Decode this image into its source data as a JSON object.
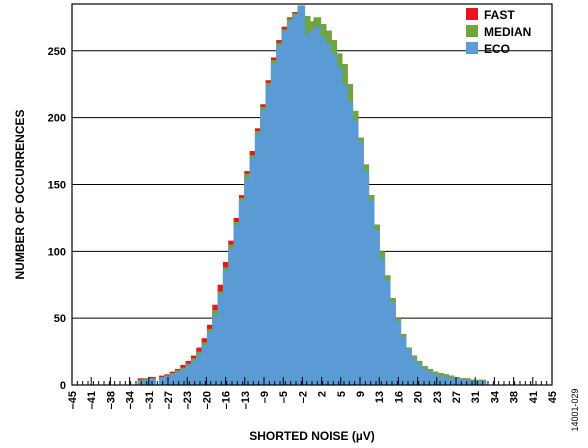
{
  "chart_data": {
    "type": "bar",
    "title": "",
    "xlabel": "SHORTED NOISE (µV)",
    "ylabel": "NUMBER OF OCCURRENCES",
    "figure_id": "14001-029",
    "xlim": [
      -45,
      45
    ],
    "ylim": [
      0,
      285
    ],
    "x_ticks": [
      "–45",
      "–41",
      "–38",
      "–34",
      "–31",
      "–27",
      "–23",
      "–20",
      "–16",
      "–13",
      "–9",
      "–5",
      "–2",
      "2",
      "5",
      "9",
      "13",
      "16",
      "20",
      "23",
      "27",
      "31",
      "34",
      "38",
      "41",
      "45"
    ],
    "y_ticks": [
      0,
      50,
      100,
      150,
      200,
      250
    ],
    "grid": true,
    "legend": "top-right",
    "colors": {
      "FAST": "#e8151b",
      "MEDIAN": "#6ea53c",
      "ECO": "#5b9bd5"
    },
    "bin_width": 0.7,
    "series": [
      {
        "name": "FAST",
        "x": [
          -32,
          -31,
          -30,
          -28,
          -27,
          -26,
          -25,
          -24,
          -23,
          -22,
          -21,
          -20,
          -19,
          -18,
          -17,
          -16,
          -15,
          -14,
          -13,
          -12,
          -11,
          -10,
          -9,
          -8,
          -7,
          -6,
          -5,
          -4,
          -3,
          -2,
          -1,
          0,
          1,
          2,
          3,
          4,
          5,
          6,
          7,
          8,
          9,
          10,
          11,
          12,
          13,
          14,
          15,
          16,
          17,
          18,
          19,
          20,
          21,
          22,
          23,
          24,
          25,
          26,
          27,
          28,
          29,
          30
        ],
        "values": [
          5,
          5,
          6,
          7,
          8,
          10,
          12,
          15,
          18,
          22,
          28,
          35,
          45,
          60,
          75,
          92,
          108,
          125,
          142,
          160,
          175,
          192,
          210,
          228,
          245,
          258,
          268,
          275,
          279,
          280,
          276,
          272,
          275,
          270,
          265,
          258,
          248,
          240,
          225,
          205,
          185,
          165,
          142,
          120,
          100,
          82,
          65,
          50,
          38,
          28,
          22,
          18,
          14,
          12,
          10,
          9,
          8,
          7,
          6,
          5,
          5,
          4
        ]
      },
      {
        "name": "MEDIAN",
        "x": [
          -32,
          -31,
          -30,
          -28,
          -27,
          -26,
          -25,
          -24,
          -23,
          -22,
          -21,
          -20,
          -19,
          -18,
          -17,
          -16,
          -15,
          -14,
          -13,
          -12,
          -11,
          -10,
          -9,
          -8,
          -7,
          -6,
          -5,
          -4,
          -3,
          -2,
          -1,
          0,
          1,
          2,
          3,
          4,
          5,
          6,
          7,
          8,
          9,
          10,
          11,
          12,
          13,
          14,
          15,
          16,
          17,
          18,
          19,
          20,
          21,
          22,
          23,
          24,
          25,
          26,
          27,
          28,
          29,
          30,
          31,
          32
        ],
        "values": [
          4,
          5,
          5,
          6,
          7,
          9,
          11,
          13,
          16,
          20,
          25,
          32,
          42,
          56,
          70,
          88,
          105,
          122,
          140,
          158,
          172,
          190,
          208,
          226,
          243,
          256,
          266,
          274,
          278,
          283,
          276,
          272,
          275,
          270,
          265,
          258,
          248,
          240,
          225,
          205,
          185,
          165,
          142,
          120,
          100,
          82,
          65,
          50,
          38,
          28,
          22,
          18,
          14,
          12,
          10,
          9,
          8,
          7,
          6,
          5,
          5,
          4,
          4,
          4
        ]
      },
      {
        "name": "ECO",
        "x": [
          -32,
          -31,
          -30,
          -28,
          -27,
          -26,
          -25,
          -24,
          -23,
          -22,
          -21,
          -20,
          -19,
          -18,
          -17,
          -16,
          -15,
          -14,
          -13,
          -12,
          -11,
          -10,
          -9,
          -8,
          -7,
          -6,
          -5,
          -4,
          -3,
          -2,
          -1,
          0,
          1,
          2,
          3,
          4,
          5,
          6,
          7,
          8,
          9,
          10,
          11,
          12,
          13,
          14,
          15,
          16,
          17,
          18,
          19,
          20,
          21,
          22,
          23,
          24,
          25,
          26,
          27,
          28,
          29,
          30,
          31,
          32
        ],
        "values": [
          3,
          4,
          5,
          6,
          7,
          8,
          10,
          12,
          15,
          18,
          23,
          30,
          40,
          52,
          68,
          86,
          102,
          120,
          138,
          155,
          170,
          188,
          206,
          224,
          240,
          254,
          265,
          272,
          277,
          284,
          262,
          265,
          268,
          260,
          255,
          248,
          238,
          225,
          212,
          198,
          182,
          160,
          138,
          116,
          95,
          78,
          62,
          48,
          36,
          27,
          20,
          16,
          12,
          10,
          8,
          7,
          6,
          5,
          5,
          4,
          4,
          3,
          3,
          3
        ]
      }
    ]
  }
}
